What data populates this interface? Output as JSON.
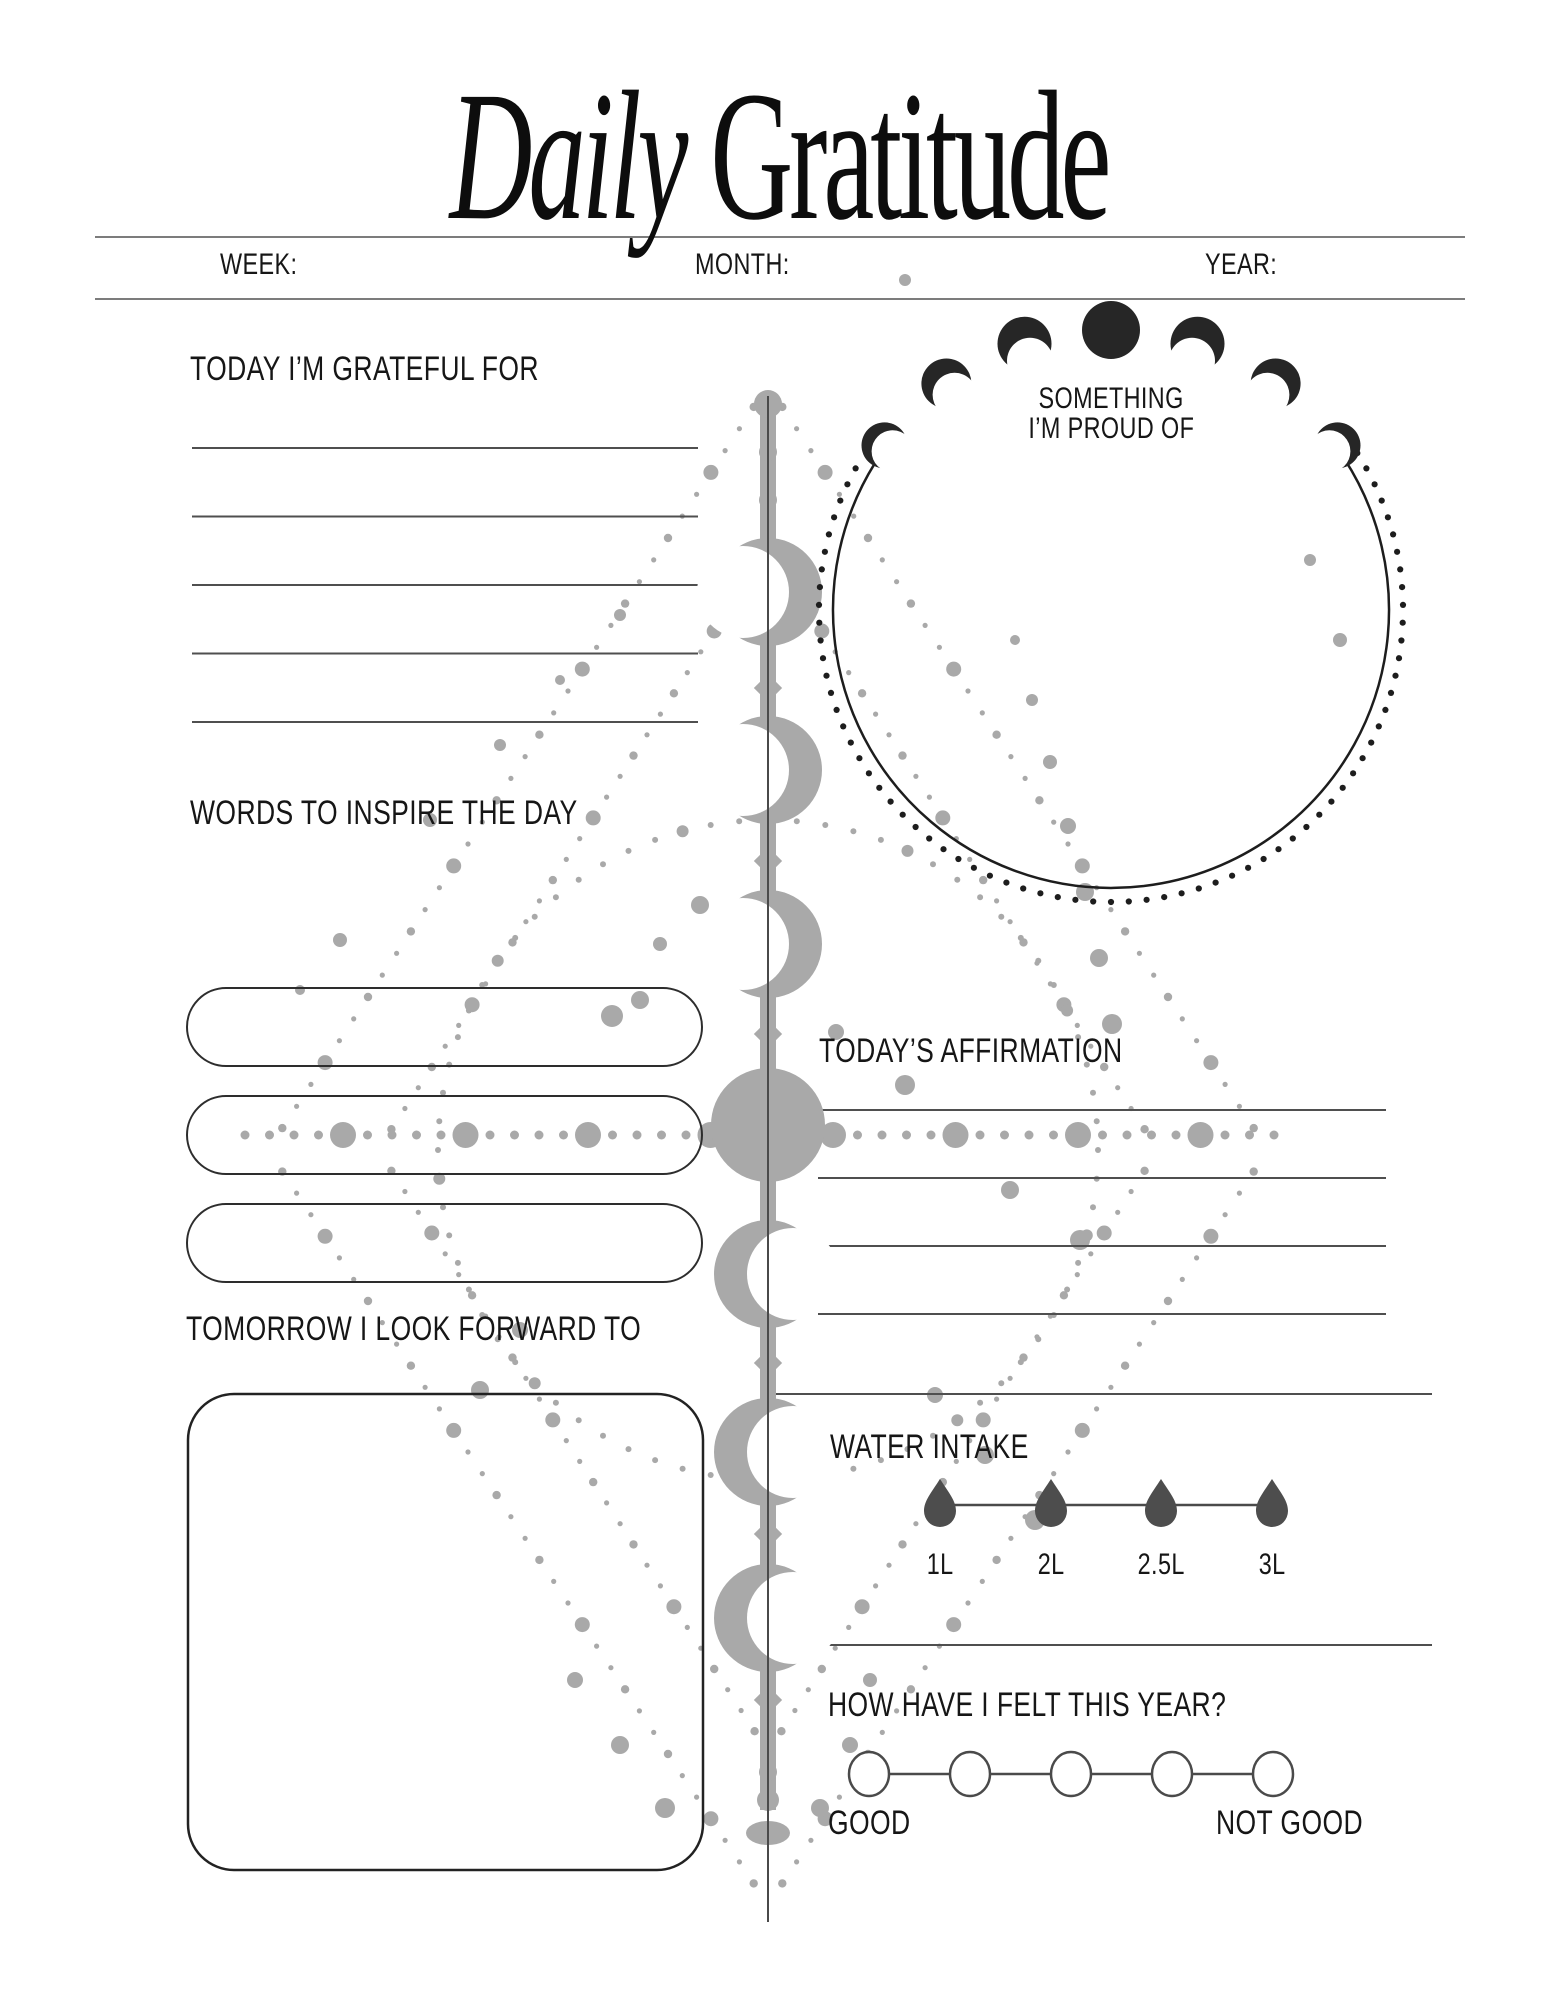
{
  "title": {
    "italic_word": "Daily",
    "regular_word": "Gratitude"
  },
  "header": {
    "week_label": "WEEK:",
    "month_label": "MONTH:",
    "year_label": "YEAR:",
    "week_value": "",
    "month_value": "",
    "year_value": ""
  },
  "sections": {
    "grateful": {
      "label": "TODAY I’M GRATEFUL FOR",
      "line_count": 5
    },
    "inspire": {
      "label": "WORDS TO INSPIRE THE DAY",
      "pill_count": 3
    },
    "tomorrow": {
      "label": "TOMORROW I LOOK FORWARD TO"
    },
    "proud": {
      "label_line1": "SOMETHING",
      "label_line2": "I’M PROUD OF"
    },
    "affirmation": {
      "label": "TODAY’S AFFIRMATION",
      "line_count": 4
    },
    "water": {
      "label": "WATER INTAKE",
      "levels": [
        "1L",
        "2L",
        "2.5L",
        "3L"
      ]
    },
    "felt": {
      "label": "HOW HAVE I FELT THIS YEAR?",
      "circle_count": 5,
      "left_label": "GOOD",
      "right_label": "NOT GOOD"
    }
  },
  "colors": {
    "ink": "#161616",
    "rule_gray": "#7c7c7c",
    "line_dark": "#4f4f4f",
    "decor_gray": "#a9a9a9",
    "drop_dark": "#4d4d4d",
    "moon_black": "#262626"
  }
}
